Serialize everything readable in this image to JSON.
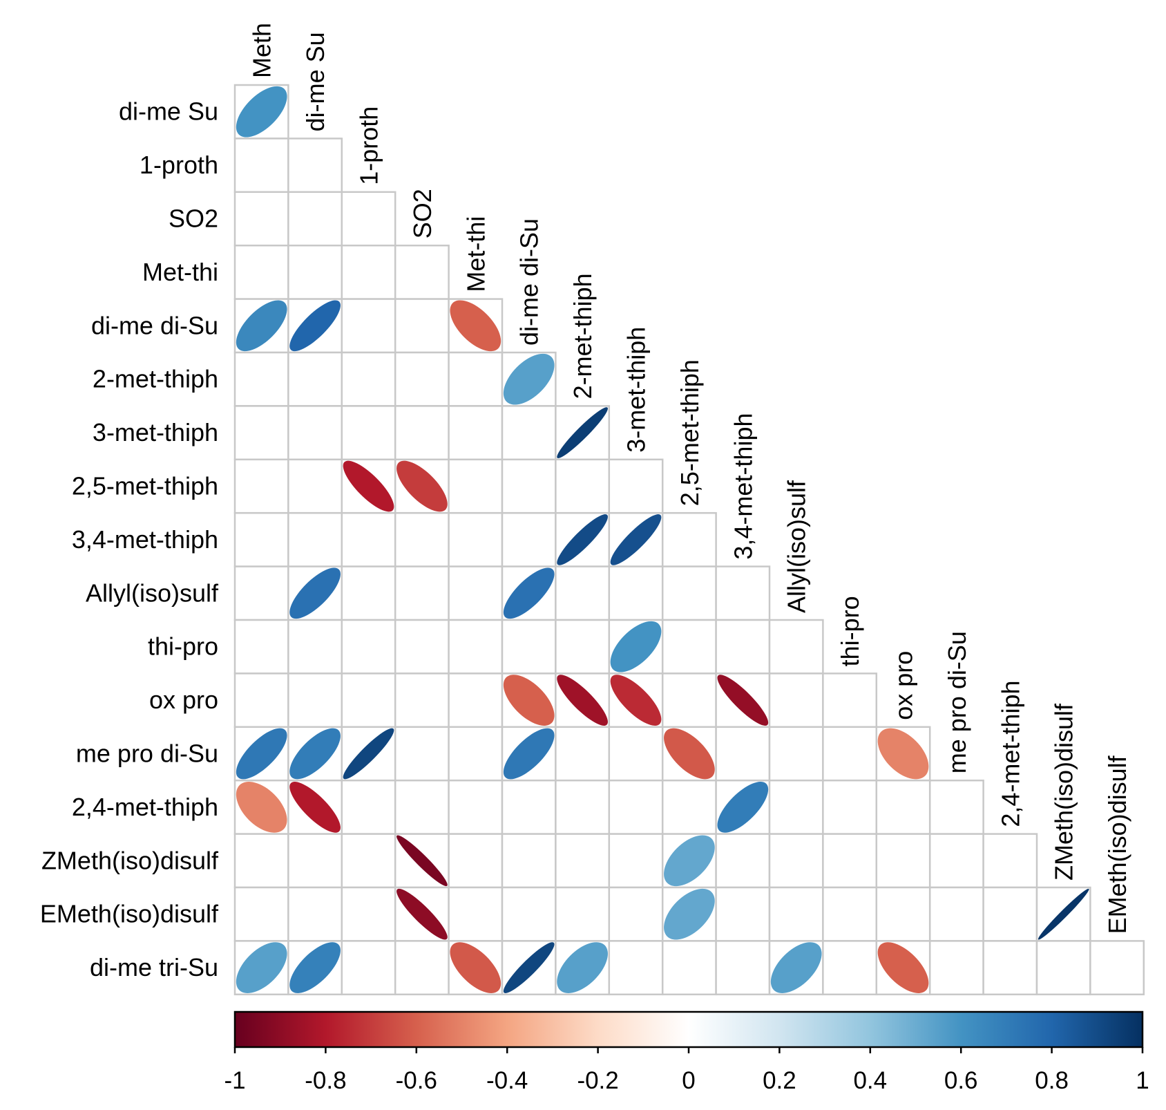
{
  "chart_data": {
    "type": "heatmap",
    "style": "corrplot lower triangle, ellipse glyphs",
    "row_labels": [
      "di-me Su",
      "1-proth",
      "SO2",
      "Met-thi",
      "di-me di-Su",
      "2-met-thiph",
      "3-met-thiph",
      "2,5-met-thiph",
      "3,4-met-thiph",
      "Allyl(iso)sulf",
      "thi-pro",
      "ox pro",
      "me pro di-Su",
      "2,4-met-thiph",
      "ZMeth(iso)disulf",
      "EMeth(iso)disulf",
      "di-me tri-Su"
    ],
    "col_labels": [
      "Meth",
      "di-me Su",
      "1-proth",
      "SO2",
      "Met-thi",
      "di-me di-Su",
      "2-met-thiph",
      "3-met-thiph",
      "2,5-met-thiph",
      "3,4-met-thiph",
      "Allyl(iso)sulf",
      "thi-pro",
      "ox pro",
      "me pro di-Su",
      "2,4-met-thiph",
      "ZMeth(iso)disulf",
      "EMeth(iso)disulf"
    ],
    "cells": [
      {
        "row": "di-me Su",
        "col": "Meth",
        "r": 0.6
      },
      {
        "row": "di-me di-Su",
        "col": "Meth",
        "r": 0.65
      },
      {
        "row": "di-me di-Su",
        "col": "di-me Su",
        "r": 0.8
      },
      {
        "row": "di-me di-Su",
        "col": "Met-thi",
        "r": -0.6
      },
      {
        "row": "2-met-thiph",
        "col": "di-me di-Su",
        "r": 0.55
      },
      {
        "row": "3-met-thiph",
        "col": "2-met-thiph",
        "r": 0.95
      },
      {
        "row": "2,5-met-thiph",
        "col": "1-proth",
        "r": -0.8
      },
      {
        "row": "2,5-met-thiph",
        "col": "SO2",
        "r": -0.7
      },
      {
        "row": "3,4-met-thiph",
        "col": "2-met-thiph",
        "r": 0.9
      },
      {
        "row": "3,4-met-thiph",
        "col": "3-met-thiph",
        "r": 0.88
      },
      {
        "row": "Allyl(iso)sulf",
        "col": "di-me Su",
        "r": 0.75
      },
      {
        "row": "Allyl(iso)sulf",
        "col": "di-me di-Su",
        "r": 0.75
      },
      {
        "row": "thi-pro",
        "col": "3-met-thiph",
        "r": 0.6
      },
      {
        "row": "ox pro",
        "col": "di-me di-Su",
        "r": -0.6
      },
      {
        "row": "ox pro",
        "col": "2-met-thiph",
        "r": -0.85
      },
      {
        "row": "ox pro",
        "col": "3-met-thiph",
        "r": -0.75
      },
      {
        "row": "ox pro",
        "col": "3,4-met-thiph",
        "r": -0.88
      },
      {
        "row": "me pro di-Su",
        "col": "Meth",
        "r": 0.72
      },
      {
        "row": "me pro di-Su",
        "col": "di-me Su",
        "r": 0.7
      },
      {
        "row": "me pro di-Su",
        "col": "1-proth",
        "r": 0.92
      },
      {
        "row": "me pro di-Su",
        "col": "di-me di-Su",
        "r": 0.72
      },
      {
        "row": "me pro di-Su",
        "col": "2,5-met-thiph",
        "r": -0.62
      },
      {
        "row": "me pro di-Su",
        "col": "ox pro",
        "r": -0.5
      },
      {
        "row": "2,4-met-thiph",
        "col": "Meth",
        "r": -0.5
      },
      {
        "row": "2,4-met-thiph",
        "col": "di-me Su",
        "r": -0.8
      },
      {
        "row": "2,4-met-thiph",
        "col": "3,4-met-thiph",
        "r": 0.7
      },
      {
        "row": "ZMeth(iso)disulf",
        "col": "SO2",
        "r": -0.95
      },
      {
        "row": "ZMeth(iso)disulf",
        "col": "2,5-met-thiph",
        "r": 0.52
      },
      {
        "row": "EMeth(iso)disulf",
        "col": "SO2",
        "r": -0.9
      },
      {
        "row": "EMeth(iso)disulf",
        "col": "2,5-met-thiph",
        "r": 0.52
      },
      {
        "row": "EMeth(iso)disulf",
        "col": "ZMeth(iso)disulf",
        "r": 0.98
      },
      {
        "row": "di-me tri-Su",
        "col": "Meth",
        "r": 0.55
      },
      {
        "row": "di-me tri-Su",
        "col": "di-me Su",
        "r": 0.68
      },
      {
        "row": "di-me tri-Su",
        "col": "Met-thi",
        "r": -0.62
      },
      {
        "row": "di-me tri-Su",
        "col": "di-me di-Su",
        "r": 0.92
      },
      {
        "row": "di-me tri-Su",
        "col": "2-met-thiph",
        "r": 0.55
      },
      {
        "row": "di-me tri-Su",
        "col": "Allyl(iso)sulf",
        "r": 0.55
      },
      {
        "row": "di-me tri-Su",
        "col": "ox pro",
        "r": -0.6
      }
    ],
    "colorbar": {
      "range": [
        -1,
        1
      ],
      "ticks": [
        "-1",
        "-0.8",
        "-0.6",
        "-0.4",
        "-0.2",
        "0",
        "0.2",
        "0.4",
        "0.6",
        "0.8",
        "1"
      ],
      "palette": [
        "#67001F",
        "#B2182B",
        "#D6604D",
        "#F4A582",
        "#FDDBC7",
        "#FFFFFF",
        "#D1E5F0",
        "#92C5DE",
        "#4393C3",
        "#2166AC",
        "#053061"
      ]
    },
    "grid_color": "#c8c8c8"
  }
}
